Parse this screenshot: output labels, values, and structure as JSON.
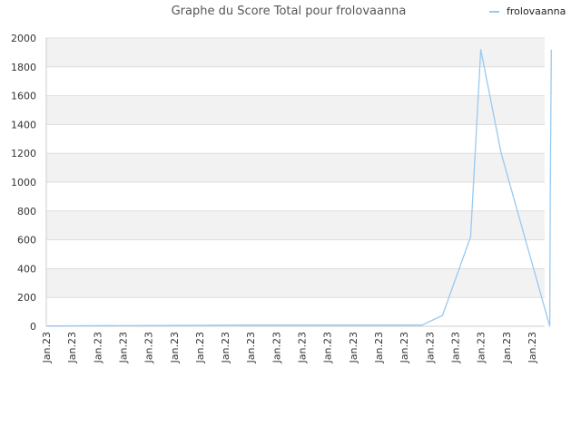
{
  "chart_data": {
    "type": "line",
    "title": "Graphe du Score Total pour frolovaanna",
    "xlabel": "",
    "ylabel": "",
    "ylim": [
      0,
      2000
    ],
    "yticks": [
      0,
      200,
      400,
      600,
      800,
      1000,
      1200,
      1400,
      1600,
      1800,
      2000
    ],
    "xtick_labels": [
      "Jan.23",
      "Jan.23",
      "Jan.23",
      "Jan.23",
      "Jan.23",
      "Jan.23",
      "Jan.23",
      "Jan.23",
      "Jan.23",
      "Jan.23",
      "Jan.23",
      "Jan.23",
      "Jan.23",
      "Jan.23",
      "Jan.23",
      "Jan.23",
      "Jan.23",
      "Jan.23",
      "Jan.23",
      "Jan.23"
    ],
    "grid": "horizontal",
    "legend_position": "top-right",
    "series": [
      {
        "name": "frolovaanna",
        "color": "#99c9f0",
        "x": [
          0,
          7.5,
          14.7,
          15.5,
          16.6,
          17.0,
          17.8,
          19.7,
          19.72,
          19.76
        ],
        "values": [
          2,
          8,
          8,
          75,
          620,
          1920,
          1200,
          0,
          960,
          1920
        ]
      }
    ]
  }
}
